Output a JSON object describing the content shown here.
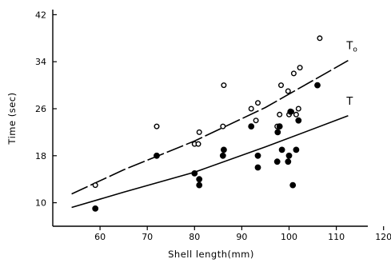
{
  "chart_data": {
    "type": "scatter",
    "title": "",
    "xlabel": "Shell length(mm)",
    "ylabel": "Time (sec)",
    "xlim": [
      50,
      120
    ],
    "ylim": [
      6,
      42
    ],
    "xticks": [
      60,
      70,
      80,
      90,
      100,
      110,
      120
    ],
    "yticks": [
      10,
      18,
      26,
      34,
      42
    ],
    "series": [
      {
        "name": "To",
        "marker": "open-circle",
        "points": [
          [
            59,
            13
          ],
          [
            72,
            23
          ],
          [
            80,
            20
          ],
          [
            80.8,
            20
          ],
          [
            81,
            22
          ],
          [
            86,
            23
          ],
          [
            86.2,
            30
          ],
          [
            92,
            26
          ],
          [
            93,
            24
          ],
          [
            93.4,
            27
          ],
          [
            97.5,
            23
          ],
          [
            98,
            25
          ],
          [
            98.3,
            30
          ],
          [
            99.8,
            29
          ],
          [
            100,
            25
          ],
          [
            100.5,
            25.5
          ],
          [
            101,
            32
          ],
          [
            101.5,
            25
          ],
          [
            102,
            26
          ],
          [
            102.3,
            33
          ],
          [
            106.5,
            38
          ]
        ]
      },
      {
        "name": "T",
        "marker": "filled-circle",
        "points": [
          [
            59,
            9
          ],
          [
            72,
            18
          ],
          [
            80,
            15
          ],
          [
            81,
            13
          ],
          [
            81,
            14
          ],
          [
            86,
            18
          ],
          [
            86.2,
            19
          ],
          [
            92,
            23
          ],
          [
            93.4,
            16
          ],
          [
            93.4,
            18
          ],
          [
            97.5,
            17
          ],
          [
            97.6,
            22
          ],
          [
            98,
            23
          ],
          [
            98.5,
            19
          ],
          [
            99.8,
            17
          ],
          [
            100,
            18
          ],
          [
            100.3,
            25.5
          ],
          [
            100.8,
            13
          ],
          [
            101.5,
            19
          ],
          [
            102,
            24
          ],
          [
            106,
            30
          ]
        ]
      }
    ],
    "fit_lines": [
      {
        "label": "T",
        "sub": "o",
        "style": "dashed",
        "points": [
          [
            54,
            11.5
          ],
          [
            65,
            15.6
          ],
          [
            80,
            20.5
          ],
          [
            95,
            26.2
          ],
          [
            112.5,
            34.2
          ]
        ]
      },
      {
        "label": "T",
        "sub": "",
        "style": "solid",
        "points": [
          [
            54,
            9.2
          ],
          [
            65,
            11.8
          ],
          [
            80,
            15.2
          ],
          [
            95,
            19.5
          ],
          [
            112.5,
            24.8
          ]
        ]
      }
    ],
    "grid": false,
    "legend": "none"
  }
}
